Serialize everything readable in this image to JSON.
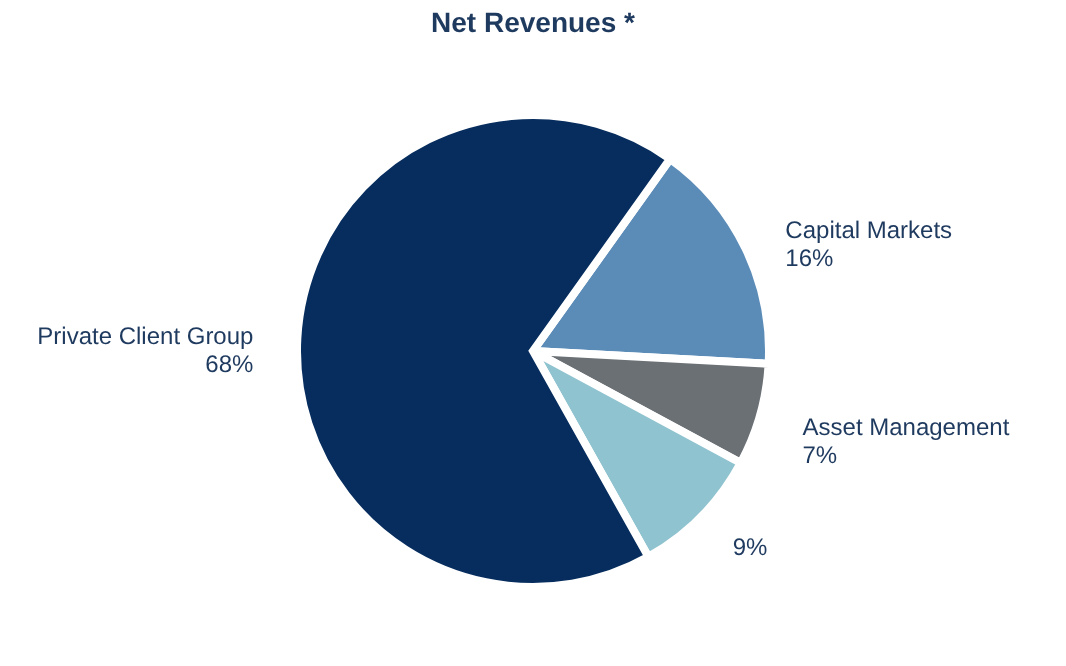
{
  "chart_data": {
    "type": "pie",
    "title": "Net Revenues *",
    "categories": [
      "Capital Markets",
      "Asset Management",
      null,
      "Private Client Group"
    ],
    "values": [
      16,
      7,
      9,
      68
    ],
    "value_labels": [
      "16%",
      "7%",
      "9%",
      "68%"
    ],
    "colors": [
      "#5b8cb8",
      "#6b7075",
      "#8fc3cf",
      "#062d5e"
    ],
    "legend": false
  }
}
